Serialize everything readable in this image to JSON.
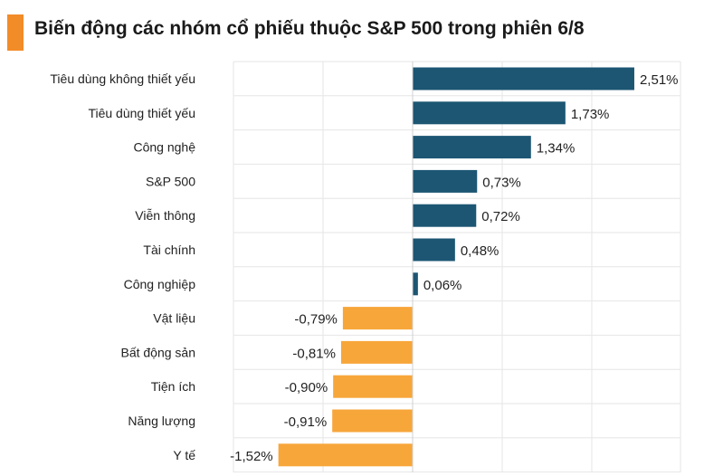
{
  "title": "Biến động các nhóm cổ phiếu thuộc S&P 500 trong phiên 6/8",
  "colors": {
    "positive": "#1c5673",
    "negative": "#f7a63a",
    "accent": "#f28c28",
    "grid": "#e6e6e6"
  },
  "chart_data": {
    "type": "bar",
    "orientation": "horizontal",
    "categories": [
      "Tiêu dùng không thiết yếu",
      "Tiêu dùng thiết yếu",
      "Công nghệ",
      "S&P 500",
      "Viễn thông",
      "Tài chính",
      "Công nghiệp",
      "Vật liệu",
      "Bất động sản",
      "Tiện ích",
      "Năng lượng",
      "Y tế"
    ],
    "values": [
      2.51,
      1.73,
      1.34,
      0.73,
      0.72,
      0.48,
      0.06,
      -0.79,
      -0.81,
      -0.9,
      -0.91,
      -1.52
    ],
    "value_labels": [
      "2,51%",
      "1,73%",
      "1,34%",
      "0,73%",
      "0,72%",
      "0,48%",
      "0,06%",
      "-0,79%",
      "-0,81%",
      "-0,90%",
      "-0,91%",
      "-1,52%"
    ],
    "unit": "%",
    "grid": true,
    "legend": "none"
  }
}
